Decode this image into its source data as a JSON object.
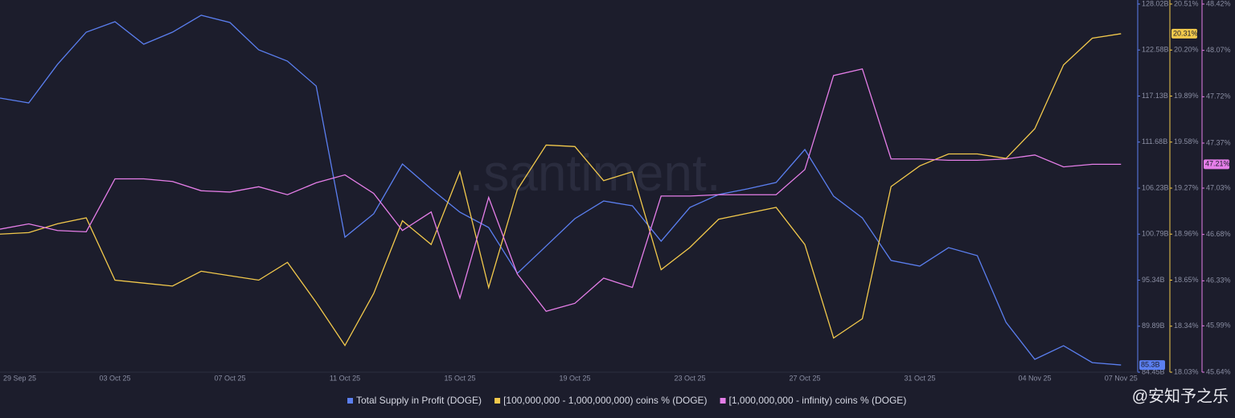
{
  "chart_data": {
    "type": "line",
    "watermark": ".santiment.",
    "source_watermark": "@安知予之乐",
    "categories": [
      "29 Sep 25",
      null,
      null,
      null,
      "03 Oct 25",
      null,
      null,
      null,
      "07 Oct 25",
      null,
      null,
      null,
      "11 Oct 25",
      null,
      null,
      null,
      "15 Oct 25",
      null,
      null,
      null,
      "19 Oct 25",
      null,
      null,
      null,
      "23 Oct 25",
      null,
      null,
      null,
      "27 Oct 25",
      null,
      null,
      null,
      "31 Oct 25",
      null,
      null,
      null,
      "04 Nov 25",
      null,
      null,
      "07 Nov 25"
    ],
    "ylim": [
      84.45,
      128.02
    ],
    "yticks": [
      {
        "value": 128.02,
        "label": "128.02B"
      },
      {
        "value": 122.58,
        "label": "122.58B"
      },
      {
        "value": 117.13,
        "label": "117.13B"
      },
      {
        "value": 111.68,
        "label": "111.68B"
      },
      {
        "value": 106.23,
        "label": "106.23B"
      },
      {
        "value": 100.79,
        "label": "100.79B"
      },
      {
        "value": 95.34,
        "label": "95.34B"
      },
      {
        "value": 89.89,
        "label": "89.89B"
      },
      {
        "value": 84.45,
        "label": "84.45B"
      }
    ],
    "y2lim": [
      18.03,
      20.51
    ],
    "y2ticks": [
      {
        "value": 20.51,
        "label": "20.51%"
      },
      {
        "value": 20.2,
        "label": "20.20%"
      },
      {
        "value": 19.89,
        "label": "19.89%"
      },
      {
        "value": 19.58,
        "label": "19.58%"
      },
      {
        "value": 19.27,
        "label": "19.27%"
      },
      {
        "value": 18.96,
        "label": "18.96%"
      },
      {
        "value": 18.65,
        "label": "18.65%"
      },
      {
        "value": 18.34,
        "label": "18.34%"
      },
      {
        "value": 18.03,
        "label": "18.03%"
      }
    ],
    "y3lim": [
      45.64,
      48.42
    ],
    "y3ticks": [
      {
        "value": 48.42,
        "label": "48.42%"
      },
      {
        "value": 48.07,
        "label": "48.07%"
      },
      {
        "value": 47.72,
        "label": "47.72%"
      },
      {
        "value": 47.37,
        "label": "47.37%"
      },
      {
        "value": 47.03,
        "label": "47.03%"
      },
      {
        "value": 46.68,
        "label": "46.68%"
      },
      {
        "value": 46.33,
        "label": "46.33%"
      },
      {
        "value": 45.99,
        "label": "45.99%"
      },
      {
        "value": 45.64,
        "label": "45.64%"
      }
    ],
    "series": [
      {
        "name": "Total Supply in Profit (DOGE)",
        "color": "#5b7ff0",
        "axis": "y",
        "badge": "85.3B",
        "values": [
          116.89,
          116.32,
          120.88,
          124.69,
          125.93,
          123.26,
          124.69,
          126.69,
          125.83,
          122.6,
          121.26,
          118.31,
          100.43,
          103.19,
          109.09,
          106.14,
          103.38,
          101.57,
          96.15,
          99.38,
          102.62,
          104.71,
          104.14,
          99.95,
          103.95,
          105.47,
          106.14,
          106.9,
          110.8,
          105.28,
          102.71,
          97.67,
          97.0,
          99.19,
          98.24,
          90.34,
          85.97,
          87.58,
          85.58,
          85.3
        ]
      },
      {
        "name": "[100,000,000 - 1,000,000,000) coins % (DOGE)",
        "color": "#f2c94c",
        "axis": "y2",
        "badge": "20.31%",
        "values": [
          18.96,
          18.97,
          19.03,
          19.07,
          18.65,
          18.63,
          18.61,
          18.71,
          18.68,
          18.65,
          18.77,
          18.5,
          18.21,
          18.56,
          19.05,
          18.89,
          19.38,
          18.6,
          19.26,
          19.56,
          19.55,
          19.32,
          19.38,
          18.72,
          18.87,
          19.06,
          19.1,
          19.14,
          18.89,
          18.26,
          18.39,
          19.28,
          19.42,
          19.5,
          19.5,
          19.47,
          19.67,
          20.1,
          20.28,
          20.31
        ]
      },
      {
        "name": "[1,000,000,000 - infinity) coins % (DOGE)",
        "color": "#e57ee8",
        "axis": "y3",
        "badge": "47.21%",
        "values": [
          46.72,
          46.76,
          46.71,
          46.7,
          47.1,
          47.1,
          47.08,
          47.01,
          47.0,
          47.04,
          46.98,
          47.07,
          47.13,
          46.99,
          46.71,
          46.85,
          46.2,
          46.96,
          46.38,
          46.1,
          46.16,
          46.35,
          46.28,
          46.97,
          46.97,
          46.98,
          46.98,
          46.98,
          47.17,
          47.88,
          47.93,
          47.25,
          47.25,
          47.24,
          47.24,
          47.25,
          47.28,
          47.19,
          47.21,
          47.21
        ]
      }
    ]
  }
}
